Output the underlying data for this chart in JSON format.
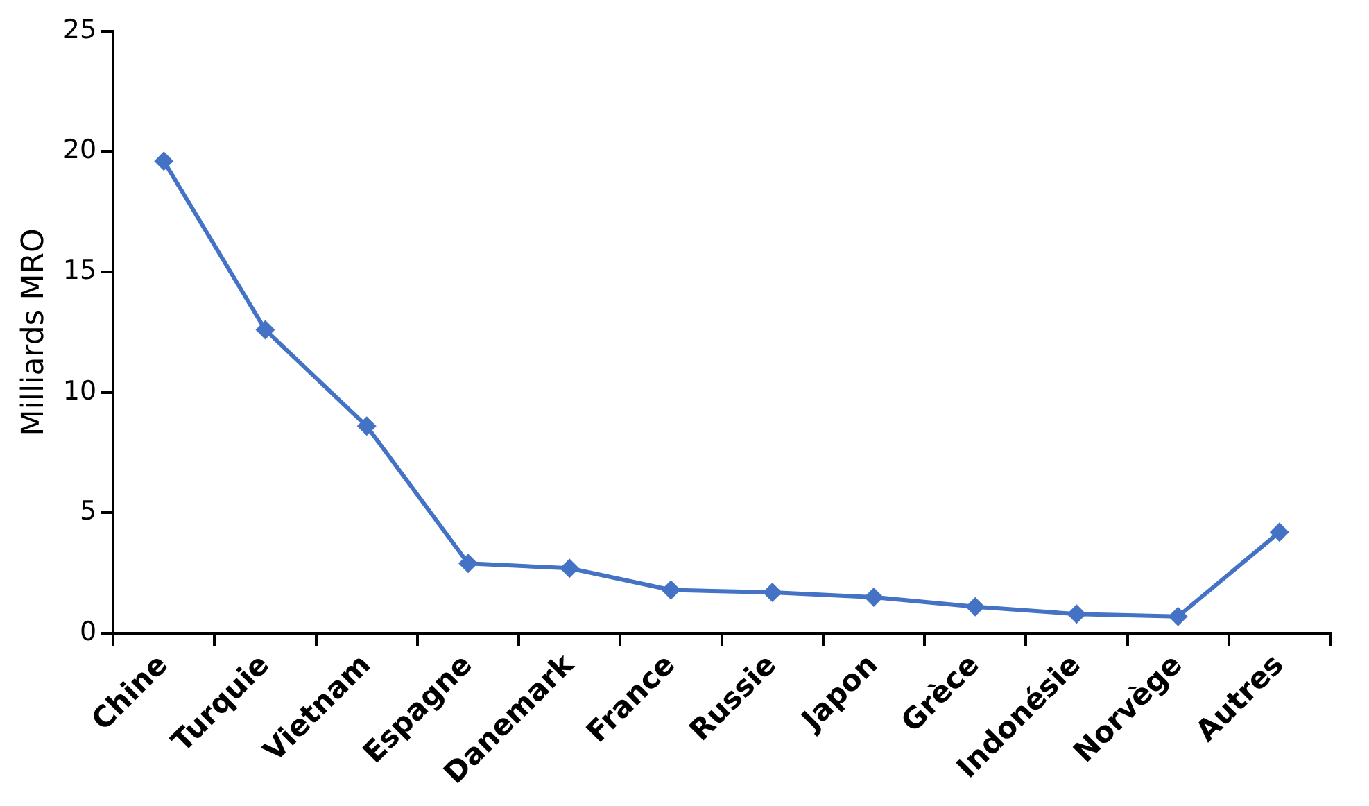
{
  "chart_data": {
    "type": "line",
    "ylabel": "Milliards MRO",
    "categories": [
      "Chine",
      "Turquie",
      "Vietnam",
      "Espagne",
      "Danemark",
      "France",
      "Russie",
      "Japon",
      "Grèce",
      "Indonésie",
      "Norvège",
      "Autres"
    ],
    "series": [
      {
        "color": "#4472c4",
        "values": [
          19.6,
          12.6,
          8.6,
          2.9,
          2.7,
          1.8,
          1.7,
          1.5,
          1.1,
          0.8,
          0.7,
          4.2
        ]
      }
    ],
    "ylim": [
      0,
      25
    ],
    "yticks": [
      0,
      5,
      10,
      15,
      20,
      25
    ],
    "marker": "diamond",
    "line_style": "solid",
    "legend": false,
    "grid": false
  }
}
